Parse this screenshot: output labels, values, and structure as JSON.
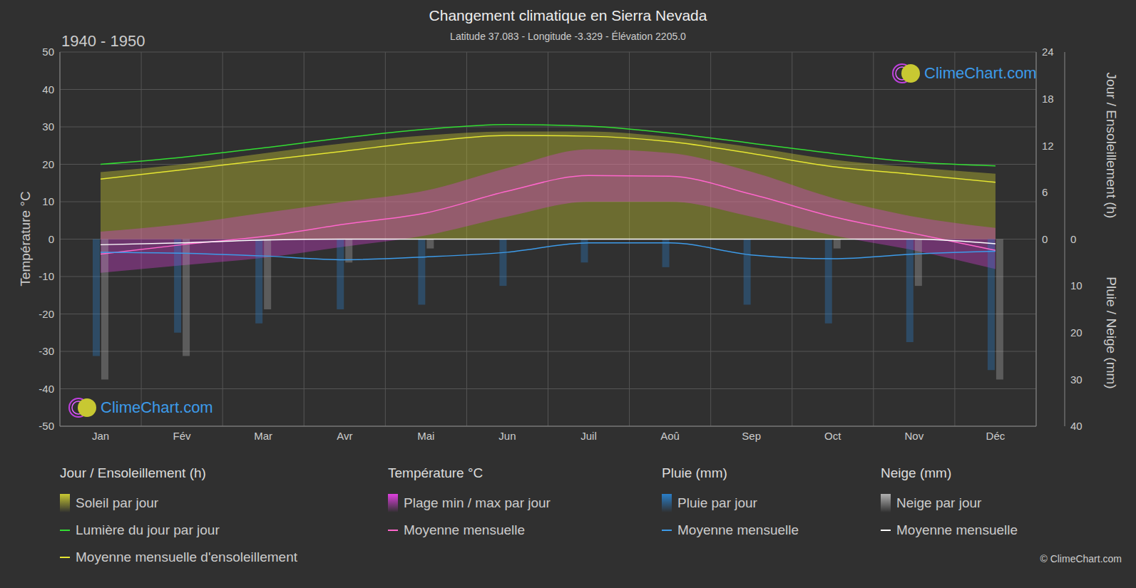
{
  "chart_data": {
    "type": "line",
    "title": "Changement climatique en Sierra Nevada",
    "subtitle": "Latitude 37.083 - Longitude -3.329 - Élévation 2205.0",
    "period": "1940 - 1950",
    "ylabel": "Température °C",
    "y2label": "Jour / Ensoleillement (h)",
    "y3label": "Pluie / Neige (mm)",
    "categories": [
      "Jan",
      "Fév",
      "Mar",
      "Avr",
      "Mai",
      "Jun",
      "Juil",
      "Aoû",
      "Sep",
      "Oct",
      "Nov",
      "Déc"
    ],
    "ylim": [
      -50,
      50
    ],
    "yticks": [
      -50,
      -40,
      -30,
      -20,
      -10,
      0,
      10,
      20,
      30,
      40,
      50
    ],
    "y2lim": [
      -24,
      24
    ],
    "y2ticks": [
      0,
      6,
      12,
      18,
      24
    ],
    "y3lim": [
      -40,
      40
    ],
    "y3ticks": [
      0,
      10,
      20,
      30,
      40
    ],
    "grid": true,
    "series": [
      {
        "name": "Soleil par jour",
        "group": "Jour / Ensoleillement (h)",
        "type": "area",
        "color": "#c8c832",
        "axis": "y2",
        "values": [
          8.6,
          9.6,
          11.0,
          12.3,
          13.3,
          13.8,
          13.8,
          13.1,
          11.8,
          10.2,
          9.2,
          8.4
        ]
      },
      {
        "name": "Plage min / max par jour",
        "group": "Température °C",
        "type": "range",
        "color": "#e040e0",
        "values": [
          [
            -9,
            2
          ],
          [
            -7,
            4
          ],
          [
            -5,
            7
          ],
          [
            -2,
            10
          ],
          [
            1,
            13
          ],
          [
            6,
            19
          ],
          [
            10,
            24
          ],
          [
            10,
            23
          ],
          [
            6,
            18
          ],
          [
            1,
            11
          ],
          [
            -3,
            6
          ],
          [
            -8,
            3
          ]
        ]
      },
      {
        "name": "Pluie par jour",
        "group": "Pluie (mm)",
        "type": "bar",
        "color": "#2a7fc9",
        "axis": "y3",
        "values": [
          25,
          20,
          18,
          15,
          14,
          10,
          5,
          6,
          14,
          18,
          22,
          28
        ]
      },
      {
        "name": "Neige par jour",
        "group": "Neige (mm)",
        "type": "bar",
        "color": "#b0b0b0",
        "axis": "y3",
        "values": [
          30,
          25,
          15,
          5,
          2,
          0,
          0,
          0,
          0,
          2,
          10,
          30
        ]
      },
      {
        "name": "Moyenne mensuelle",
        "group": "Température °C",
        "type": "line",
        "color": "#ff66cc",
        "values": [
          -4,
          -1.5,
          0.7,
          4,
          7,
          12.8,
          17,
          16.8,
          12,
          6,
          1.5,
          -3
        ]
      },
      {
        "name": "Lumière du jour par jour",
        "group": "Jour / Ensoleillement (h)",
        "type": "line",
        "color": "#33dd33",
        "axis": "y2",
        "values": [
          9.6,
          10.5,
          11.7,
          13.0,
          14.1,
          14.7,
          14.5,
          13.6,
          12.3,
          11.0,
          9.9,
          9.4
        ]
      },
      {
        "name": "Moyenne mensuelle d'ensoleillement",
        "group": "Jour / Ensoleillement (h)",
        "type": "line",
        "color": "#e6e632",
        "axis": "y2",
        "values": [
          7.7,
          8.9,
          10.1,
          11.3,
          12.5,
          13.3,
          13.2,
          12.5,
          11.0,
          9.3,
          8.3,
          7.3
        ]
      },
      {
        "name": "Moyenne mensuelle",
        "group": "Pluie (mm)",
        "type": "line",
        "color": "#3d9be9",
        "axis": "y3",
        "values": [
          2.8,
          3.0,
          3.6,
          4.4,
          3.8,
          2.8,
          0.8,
          0.8,
          3.4,
          4.2,
          3.2,
          2.6
        ]
      },
      {
        "name": "Moyenne mensuelle",
        "group": "Neige (mm)",
        "type": "line",
        "color": "#ffffff",
        "axis": "y3",
        "values": [
          1.2,
          0.8,
          0.2,
          0,
          0,
          0,
          0,
          0,
          0,
          0,
          0,
          1.0
        ]
      }
    ]
  },
  "watermark": "ClimeChart.com",
  "copyright": "© ClimeChart.com"
}
